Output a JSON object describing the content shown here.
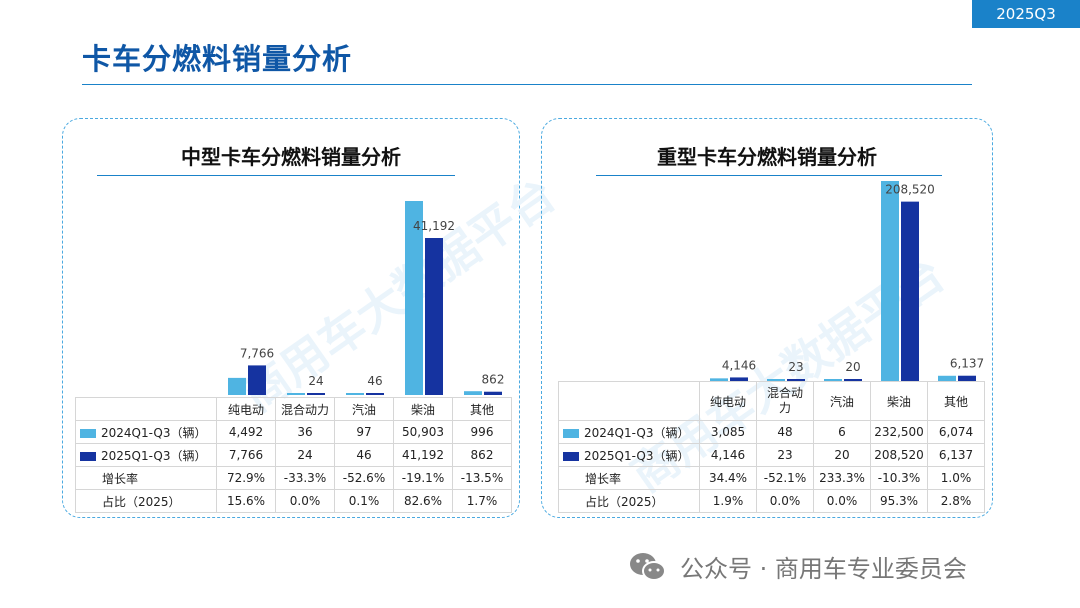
{
  "badge": "2025Q3",
  "title": "卡车分燃料销量分析",
  "footer": "公众号 · 商用车专业委员会",
  "watermark": "商用车大数据平台",
  "colors": {
    "series_2024": "#4fb4e2",
    "series_2025": "#1533a0",
    "accent": "#1a82c9",
    "title": "#0f57a6"
  },
  "row_labels": {
    "s2024": "2024Q1-Q3（辆）",
    "s2025": "2025Q1-Q3（辆）",
    "growth": "增长率",
    "share": "占比（2025）"
  },
  "chart_data": [
    {
      "type": "bar",
      "title": "中型卡车分燃料销量分析",
      "categories": [
        "纯电动",
        "混合动力",
        "汽油",
        "柴油",
        "其他"
      ],
      "series": [
        {
          "name": "2024Q1-Q3（辆）",
          "values": [
            4492,
            36,
            97,
            50903,
            996
          ]
        },
        {
          "name": "2025Q1-Q3（辆）",
          "values": [
            7766,
            24,
            46,
            41192,
            862
          ]
        }
      ],
      "data_labels": [
        "7,766",
        "24",
        "46",
        "41,192",
        "862"
      ],
      "table": {
        "s2024": [
          "4,492",
          "36",
          "97",
          "50,903",
          "996"
        ],
        "s2025": [
          "7,766",
          "24",
          "46",
          "41,192",
          "862"
        ],
        "growth": [
          "72.9%",
          "-33.3%",
          "-52.6%",
          "-19.1%",
          "-13.5%"
        ],
        "share": [
          "15.6%",
          "0.0%",
          "0.1%",
          "82.6%",
          "1.7%"
        ]
      },
      "ylim": [
        0,
        50903
      ],
      "legend": "table"
    },
    {
      "type": "bar",
      "title": "重型卡车分燃料销量分析",
      "categories": [
        "纯电动",
        "混合动\n力",
        "汽油",
        "柴油",
        "其他"
      ],
      "series": [
        {
          "name": "2024Q1-Q3（辆）",
          "values": [
            3085,
            48,
            6,
            232500,
            6074
          ]
        },
        {
          "name": "2025Q1-Q3（辆）",
          "values": [
            4146,
            23,
            20,
            208520,
            6137
          ]
        }
      ],
      "data_labels": [
        "4,146",
        "23",
        "20",
        "208,520",
        "6,137"
      ],
      "table": {
        "s2024": [
          "3,085",
          "48",
          "6",
          "232,500",
          "6,074"
        ],
        "s2025": [
          "4,146",
          "23",
          "20",
          "208,520",
          "6,137"
        ],
        "growth": [
          "34.4%",
          "-52.1%",
          "233.3%",
          "-10.3%",
          "1.0%"
        ],
        "share": [
          "1.9%",
          "0.0%",
          "0.0%",
          "95.3%",
          "2.8%"
        ]
      },
      "ylim": [
        0,
        232500
      ],
      "legend": "table"
    }
  ]
}
